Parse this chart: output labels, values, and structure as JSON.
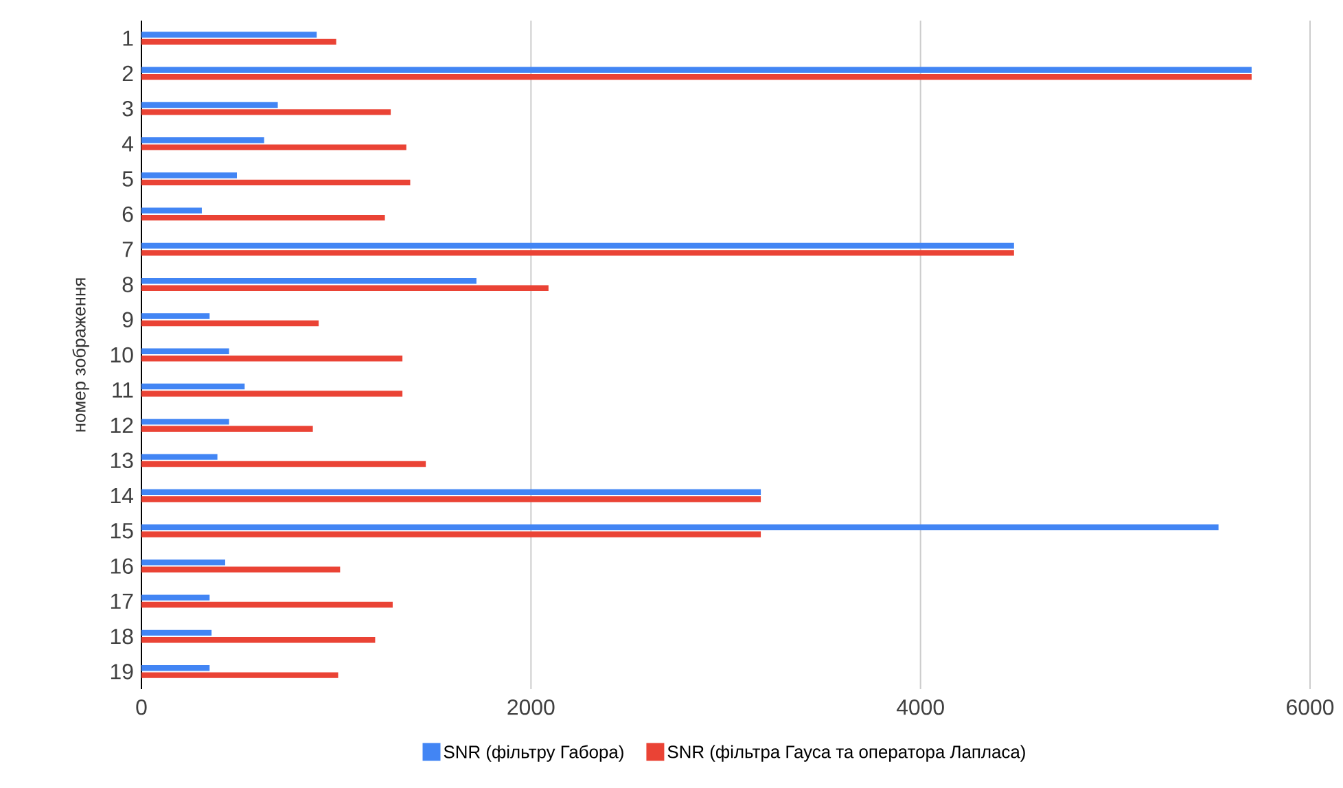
{
  "chart_data": {
    "type": "bar",
    "orientation": "horizontal",
    "ylabel": "номер зображення",
    "categories": [
      "1",
      "2",
      "3",
      "4",
      "5",
      "6",
      "7",
      "8",
      "9",
      "10",
      "11",
      "12",
      "13",
      "14",
      "15",
      "16",
      "17",
      "18",
      "19"
    ],
    "series": [
      {
        "name": "SNR (фільтру Габора)",
        "color": "#4285f4",
        "values": [
          900,
          5700,
          700,
          630,
          490,
          310,
          4480,
          1720,
          350,
          450,
          530,
          450,
          390,
          3180,
          5530,
          430,
          350,
          360,
          350
        ]
      },
      {
        "name": "SNR (фільтра Гауса та оператора Лапласа)",
        "color": "#ea4335",
        "values": [
          1000,
          5700,
          1280,
          1360,
          1380,
          1250,
          4480,
          2090,
          910,
          1340,
          1340,
          880,
          1460,
          3180,
          3180,
          1020,
          1290,
          1200,
          1010
        ]
      }
    ],
    "xlim": [
      0,
      6000
    ],
    "xticks": [
      0,
      2000,
      4000,
      6000
    ],
    "grid": "x",
    "legend": "bottom"
  }
}
